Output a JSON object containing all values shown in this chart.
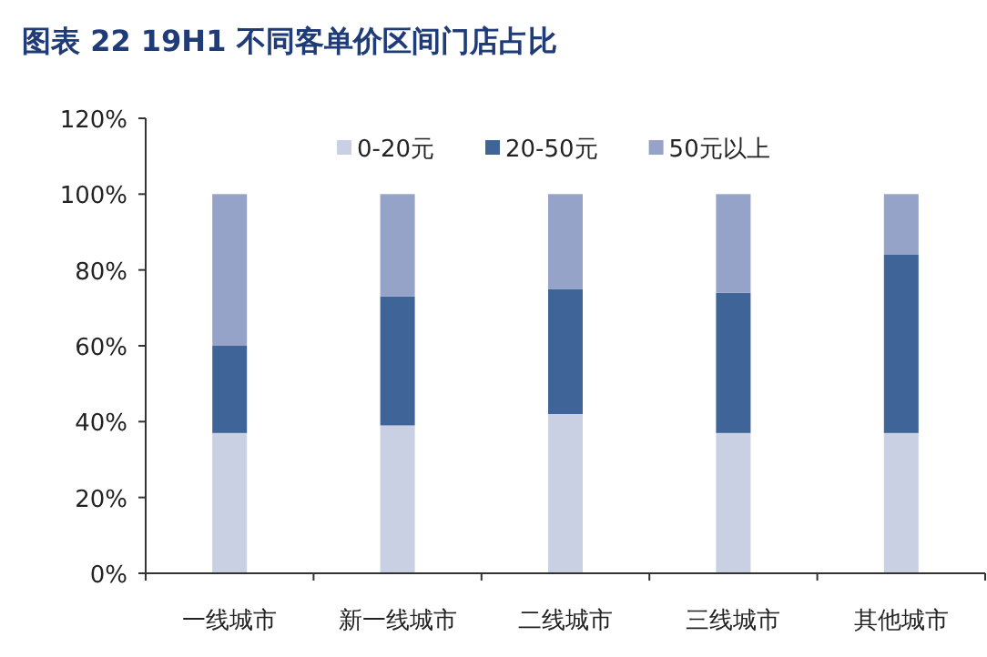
{
  "chart_data": {
    "type": "bar",
    "title": "图表 22   19H1 不同客单价区间门店占比",
    "stacked": true,
    "categories": [
      "一线城市",
      "新一线城市",
      "二线城市",
      "三线城市",
      "其他城市"
    ],
    "series": [
      {
        "name": "0-20元",
        "color": "#c9d0e4",
        "values": [
          37,
          39,
          42,
          37,
          37
        ]
      },
      {
        "name": "20-50元",
        "color": "#3f6497",
        "values": [
          23,
          34,
          33,
          37,
          47
        ]
      },
      {
        "name": "50元以上",
        "color": "#95a3c8",
        "values": [
          40,
          27,
          25,
          26,
          16
        ]
      }
    ],
    "ylim": [
      0,
      120
    ],
    "yticks": [
      {
        "value": 0,
        "label": "0%"
      },
      {
        "value": 20,
        "label": "20%"
      },
      {
        "value": 40,
        "label": "40%"
      },
      {
        "value": 60,
        "label": "60%"
      },
      {
        "value": 80,
        "label": "80%"
      },
      {
        "value": 100,
        "label": "100%"
      },
      {
        "value": 120,
        "label": "120%"
      }
    ],
    "grid": false,
    "legend": "top"
  }
}
